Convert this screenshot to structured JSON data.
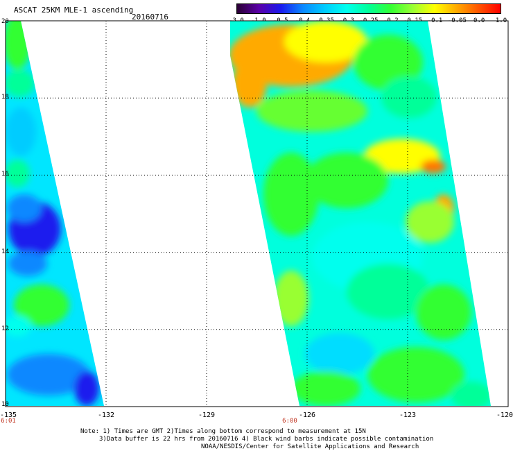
{
  "header": {
    "title": "ASCAT 25KM MLE-1 ascending",
    "date": "20160716"
  },
  "colorbar": {
    "tick_labels": [
      "-3.0",
      "-1.0",
      "-0.5",
      "-0.4",
      "-0.35",
      "-0.3",
      "-0.25",
      "-0.2",
      "-0.15",
      "-0.1",
      "-0.05",
      "0.0",
      "1.0"
    ],
    "colors": [
      "#2a0033",
      "#5a00a8",
      "#1a1aee",
      "#0a88ff",
      "#00ccff",
      "#00ffee",
      "#00ff99",
      "#33ff33",
      "#99ff33",
      "#ffff00",
      "#ffaa00",
      "#ff5500",
      "#ff0000"
    ]
  },
  "map": {
    "lat_labels": [
      "20",
      "18",
      "16",
      "14",
      "12",
      "10"
    ],
    "lon_labels": [
      "-135",
      "-132",
      "-129",
      "-126",
      "-123",
      "-120"
    ],
    "time_labels": [
      "6:01",
      "6:00"
    ],
    "lat_range": [
      10,
      20
    ],
    "lon_range": [
      -135,
      -120
    ],
    "gridlines": true
  },
  "notes": {
    "line1": "Note: 1) Times are GMT 2)Times along bottom correspond to measurement at 15N",
    "line2": "3)Data buffer is 22 hrs from 20160716 4) Black wind barbs indicate possible contamination",
    "line3": "NOAA/NESDIS/Center for Satellite Applications and Research"
  }
}
